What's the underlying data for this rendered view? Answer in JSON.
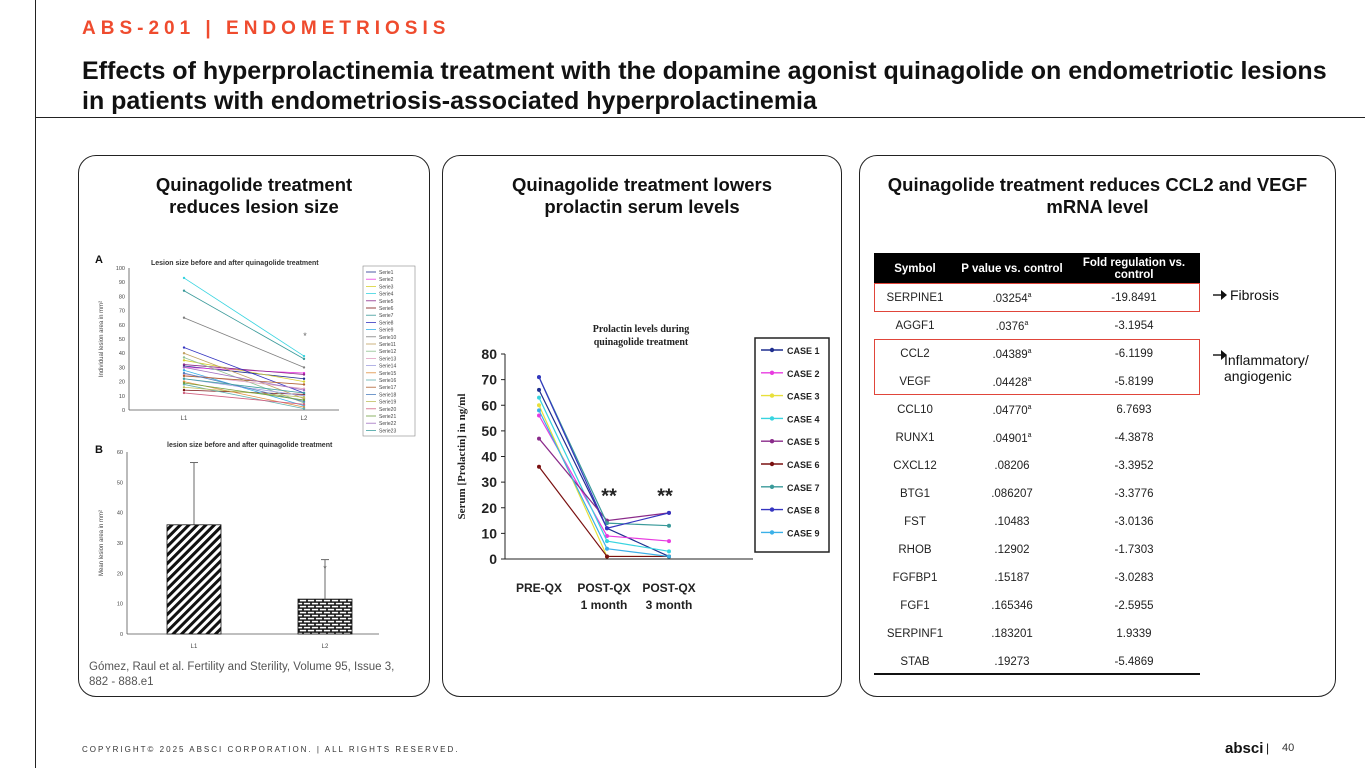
{
  "header": {
    "eyebrow": "ABS-201 | ENDOMETRIOSIS",
    "title": "Effects of hyperprolactinemia treatment with the dopamine agonist quinagolide on endometriotic lesions in patients with endometriosis-associated hyperprolactinemia"
  },
  "panel1": {
    "title": "Quinagolide treatment reduces lesion size",
    "figA": {
      "label": "A",
      "title": "Lesion size before and after quinagolide treatment",
      "ylabel": "Individual lesion area in mm²",
      "yticks": [
        "100",
        "90",
        "80",
        "70",
        "60",
        "50",
        "40",
        "30",
        "20",
        "10",
        "0"
      ],
      "xticks": [
        "L1",
        "L2"
      ],
      "legend": [
        "Serie1",
        "Serie2",
        "Serie3",
        "Serie4",
        "Serie5",
        "Serie6",
        "Serie7",
        "Serie8",
        "Serie9",
        "Serie10",
        "Serie11",
        "Serie12",
        "Serie13",
        "Serie14",
        "Serie15",
        "Serie16",
        "Serie17",
        "Serie18",
        "Serie19",
        "Serie20",
        "Serie21",
        "Serie22",
        "Serie23"
      ],
      "asterisk": "*"
    },
    "figB": {
      "label": "B",
      "title": "lesion size before and after quinagolide treatment",
      "ylabel": "Mean lesion area in mm²",
      "yticks": [
        "60",
        "50",
        "40",
        "30",
        "20",
        "10",
        "0"
      ],
      "xticks": [
        "L1",
        "L2"
      ],
      "asterisk": "*"
    },
    "caption": "Gómez, Raul et al. Fertility and Sterility, Volume 95, Issue 3, 882 - 888.e1"
  },
  "panel2": {
    "title": "Quinagolide treatment lowers prolactin serum levels",
    "chart_title_l1": "Prolactin levels during",
    "chart_title_l2": "quinagolide treatment",
    "ylabel": "Serum [Prolactin] in ng/ml",
    "yticks": [
      "80",
      "70",
      "60",
      "50",
      "40",
      "30",
      "20",
      "10",
      "0"
    ],
    "x1": "PRE-QX",
    "x2_l1": "POST-QX",
    "x2_l2": "1 month",
    "x3_l1": "POST-QX",
    "x3_l2": "3 month",
    "sig": "**",
    "legend": [
      "CASE 1",
      "CASE 2",
      "CASE 3",
      "CASE 4",
      "CASE 5",
      "CASE 6",
      "CASE 7",
      "CASE 8",
      "CASE 9"
    ]
  },
  "chart_data": [
    {
      "type": "line",
      "title": "Lesion size before and after quinagolide treatment",
      "xlabel": "",
      "ylabel": "Individual lesion area in mm²",
      "categories": [
        "L1",
        "L2"
      ],
      "ylim": [
        0,
        100
      ],
      "legend": "right",
      "series": [
        {
          "name": "Serie1",
          "values": [
            31,
            22
          ]
        },
        {
          "name": "Serie2",
          "values": [
            30,
            26
          ]
        },
        {
          "name": "Serie3",
          "values": [
            35,
            20
          ]
        },
        {
          "name": "Serie4",
          "values": [
            93,
            38
          ]
        },
        {
          "name": "Serie5",
          "values": [
            32,
            25
          ]
        },
        {
          "name": "Serie6",
          "values": [
            14,
            11
          ]
        },
        {
          "name": "Serie7",
          "values": [
            84,
            36
          ]
        },
        {
          "name": "Serie8",
          "values": [
            44,
            12
          ]
        },
        {
          "name": "Serie9",
          "values": [
            28,
            3
          ]
        },
        {
          "name": "Serie10",
          "values": [
            65,
            30
          ]
        },
        {
          "name": "Serie11",
          "values": [
            40,
            8
          ]
        },
        {
          "name": "Serie12",
          "values": [
            37,
            5
          ]
        },
        {
          "name": "Serie13",
          "values": [
            25,
            15
          ]
        },
        {
          "name": "Serie14",
          "values": [
            22,
            10
          ]
        },
        {
          "name": "Serie15",
          "values": [
            20,
            2
          ]
        },
        {
          "name": "Serie16",
          "values": [
            18,
            1
          ]
        },
        {
          "name": "Serie17",
          "values": [
            24,
            18
          ]
        },
        {
          "name": "Serie18",
          "values": [
            26,
            6
          ]
        },
        {
          "name": "Serie19",
          "values": [
            16,
            9
          ]
        },
        {
          "name": "Serie20",
          "values": [
            12,
            4
          ]
        },
        {
          "name": "Serie21",
          "values": [
            19,
            7
          ]
        },
        {
          "name": "Serie22",
          "values": [
            30,
            14
          ]
        },
        {
          "name": "Serie23",
          "values": [
            22,
            12
          ]
        }
      ]
    },
    {
      "type": "bar",
      "title": "lesion size before and after quinagolide treatment",
      "xlabel": "",
      "ylabel": "Mean lesion area in mm²",
      "categories": [
        "L1",
        "L2"
      ],
      "values": [
        36,
        11.5
      ],
      "errors": [
        20.5,
        13
      ],
      "ylim": [
        0,
        60
      ]
    },
    {
      "type": "line",
      "title": "Prolactin levels during quinagolide treatment",
      "xlabel": "",
      "ylabel": "Serum [Prolactin] in ng/ml",
      "categories": [
        "PRE-QX",
        "POST-QX 1 month",
        "POST-QX 3 month"
      ],
      "ylim": [
        0,
        80
      ],
      "legend": "right",
      "series": [
        {
          "name": "CASE 1",
          "values": [
            66,
            12,
            1
          ]
        },
        {
          "name": "CASE 2",
          "values": [
            56,
            9,
            7
          ]
        },
        {
          "name": "CASE 3",
          "values": [
            60,
            1,
            1
          ]
        },
        {
          "name": "CASE 4",
          "values": [
            63,
            7,
            3
          ]
        },
        {
          "name": "CASE 5",
          "values": [
            47,
            15,
            18
          ]
        },
        {
          "name": "CASE 6",
          "values": [
            36,
            1,
            1
          ]
        },
        {
          "name": "CASE 7",
          "values": [
            71,
            14,
            13
          ]
        },
        {
          "name": "CASE 8",
          "values": [
            71,
            12,
            18
          ]
        },
        {
          "name": "CASE 9",
          "values": [
            58,
            4,
            1
          ]
        }
      ]
    }
  ],
  "panel3": {
    "title": "Quinagolide treatment reduces CCL2 and VEGF mRNA level",
    "columns": [
      "Symbol",
      "P value vs. control",
      "Fold regulation vs. control"
    ],
    "rows": [
      {
        "symbol": "SERPINE1",
        "p": ".03254",
        "sup": "a",
        "fold": "-19.8491"
      },
      {
        "symbol": "AGGF1",
        "p": ".0376",
        "sup": "a",
        "fold": "-3.1954"
      },
      {
        "symbol": "CCL2",
        "p": ".04389",
        "sup": "a",
        "fold": "-6.1199"
      },
      {
        "symbol": "VEGF",
        "p": ".04428",
        "sup": "a",
        "fold": "-5.8199"
      },
      {
        "symbol": "CCL10",
        "p": ".04770",
        "sup": "a",
        "fold": "6.7693"
      },
      {
        "symbol": "RUNX1",
        "p": ".04901",
        "sup": "a",
        "fold": "-4.3878"
      },
      {
        "symbol": "CXCL12",
        "p": ".08206",
        "sup": "",
        "fold": "-3.3952"
      },
      {
        "symbol": "BTG1",
        "p": ".086207",
        "sup": "",
        "fold": "-3.3776"
      },
      {
        "symbol": "FST",
        "p": ".10483",
        "sup": "",
        "fold": "-3.0136"
      },
      {
        "symbol": "RHOB",
        "p": ".12902",
        "sup": "",
        "fold": "-1.7303"
      },
      {
        "symbol": "FGFBP1",
        "p": ".15187",
        "sup": "",
        "fold": "-3.0283"
      },
      {
        "symbol": "FGF1",
        "p": ".165346",
        "sup": "",
        "fold": "-2.5955"
      },
      {
        "symbol": "SERPINF1",
        "p": ".183201",
        "sup": "",
        "fold": "1.9339"
      },
      {
        "symbol": "STAB",
        "p": ".19273",
        "sup": "",
        "fold": "-5.4869"
      }
    ],
    "label_fibrosis": "Fibrosis",
    "label_inflam_l1": "Inflammatory/",
    "label_inflam_l2": "angiogenic"
  },
  "footer": {
    "copyright": "COPYRIGHT© 2025 ABSCI CORPORATION.  |  ALL RIGHTS RESERVED.",
    "brand": "absci",
    "separator": "|",
    "page": "40"
  },
  "colors": {
    "accent": "#ef4b2e",
    "highlight_box": "#e0453a",
    "case_colors": [
      "#1f2f8f",
      "#e83be0",
      "#e8e03b",
      "#38d4e0",
      "#8a2a8a",
      "#7a1010",
      "#3a9a9a",
      "#3535c0",
      "#3ab0e8"
    ]
  }
}
